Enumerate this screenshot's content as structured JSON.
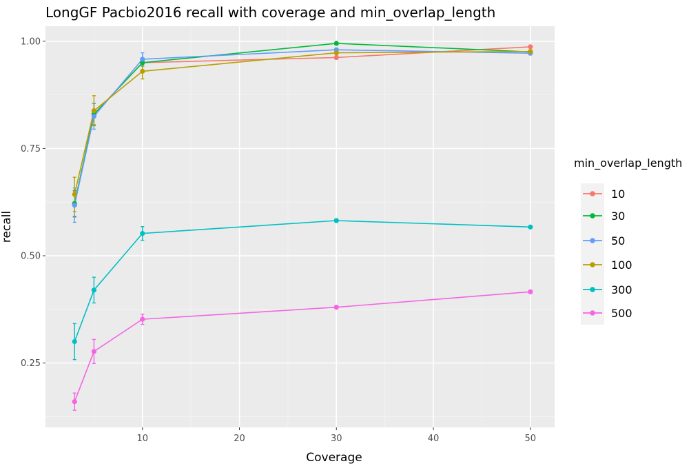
{
  "chart_data": {
    "type": "line",
    "title": "LongGF Pacbio2016 recall with coverage and min_overlap_length",
    "xlabel": "Coverage",
    "ylabel": "recall",
    "xlim": [
      0,
      52.5
    ],
    "ylim": [
      0.1,
      1.035
    ],
    "x_ticks": [
      10,
      20,
      30,
      40,
      50
    ],
    "x_tick_labels": [
      "10",
      "20",
      "30",
      "40",
      "50"
    ],
    "y_ticks": [
      0.25,
      0.5,
      0.75,
      1.0
    ],
    "y_tick_labels": [
      "0.25",
      "0.50",
      "0.75",
      "1.00"
    ],
    "grid": true,
    "legend_title": "min_overlap_length",
    "legend_position": "right",
    "x": [
      3,
      5,
      10,
      30,
      50
    ],
    "series": [
      {
        "name": "10",
        "color": "#F8766D",
        "values": [
          0.62,
          0.83,
          0.95,
          0.962,
          0.987
        ],
        "errors": [
          0.03,
          0.025,
          0.008,
          0.004,
          0.003
        ]
      },
      {
        "name": "30",
        "color": "#00BA38",
        "values": [
          0.622,
          0.83,
          0.95,
          0.995,
          0.975
        ],
        "errors": [
          0.03,
          0.025,
          0.008,
          0.003,
          0.003
        ]
      },
      {
        "name": "50",
        "color": "#619CFF",
        "values": [
          0.618,
          0.825,
          0.958,
          0.98,
          0.972
        ],
        "errors": [
          0.04,
          0.03,
          0.015,
          0.004,
          0.004
        ]
      },
      {
        "name": "100",
        "color": "#B79F00",
        "values": [
          0.643,
          0.838,
          0.93,
          0.973,
          0.976
        ],
        "errors": [
          0.04,
          0.035,
          0.018,
          0.004,
          0.003
        ]
      },
      {
        "name": "300",
        "color": "#00BFC4",
        "values": [
          0.3,
          0.42,
          0.552,
          0.582,
          0.567
        ],
        "errors": [
          0.042,
          0.03,
          0.016,
          0.004,
          0.003
        ]
      },
      {
        "name": "500",
        "color": "#F564E3",
        "values": [
          0.16,
          0.277,
          0.352,
          0.38,
          0.416
        ],
        "errors": [
          0.02,
          0.028,
          0.012,
          0.004,
          0.004
        ]
      }
    ]
  }
}
